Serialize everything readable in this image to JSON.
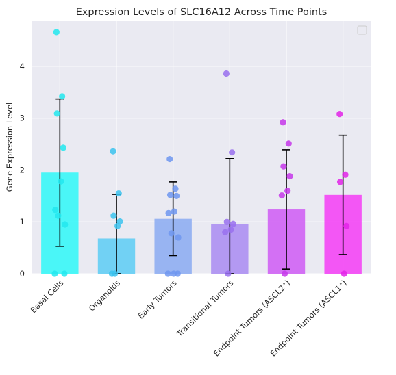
{
  "chart_data": {
    "type": "bar",
    "title": "Expression Levels of SLC16A12 Across Time Points",
    "xlabel": "",
    "ylabel": "Gene Expression Level",
    "ylim": [
      0,
      4.87
    ],
    "yticks": [
      0,
      1,
      2,
      3,
      4
    ],
    "grid": true,
    "legend": "top-right",
    "legend_entries": [],
    "categories": [
      "Basal Cells",
      "Organoids",
      "Early Tumors",
      "Transitional Tumors",
      "Endpoint Tumors (ASCL2⁺)",
      "Endpoint Tumors (ASCL1⁺)"
    ],
    "colors": [
      "#2ef8f8",
      "#5ccdf4",
      "#8aaaf2",
      "#a98bf2",
      "#cf5af4",
      "#f43cf6"
    ],
    "point_colors": [
      "#22e8ee",
      "#3cc3ef",
      "#6f97f0",
      "#9970ee",
      "#c637ea",
      "#e223e8"
    ],
    "values": [
      1.95,
      0.68,
      1.06,
      0.96,
      1.24,
      1.52
    ],
    "errors": [
      1.42,
      0.85,
      0.71,
      1.26,
      1.15,
      1.15
    ],
    "points": [
      [
        4.66,
        3.42,
        3.09,
        2.43,
        1.78,
        1.23,
        1.12,
        0.95,
        0.0,
        0.0
      ],
      [
        2.36,
        1.55,
        1.12,
        1.01,
        0.92,
        0.0,
        0.0
      ],
      [
        2.21,
        1.64,
        1.52,
        1.5,
        1.2,
        1.17,
        0.78,
        0.7,
        0.0,
        0.0,
        0.0
      ],
      [
        3.86,
        2.34,
        1.0,
        0.96,
        0.85,
        0.8,
        0.0
      ],
      [
        2.92,
        2.51,
        2.07,
        1.88,
        1.6,
        1.51,
        0.0
      ],
      [
        3.08,
        1.91,
        1.77,
        0.92,
        0.0
      ]
    ]
  }
}
